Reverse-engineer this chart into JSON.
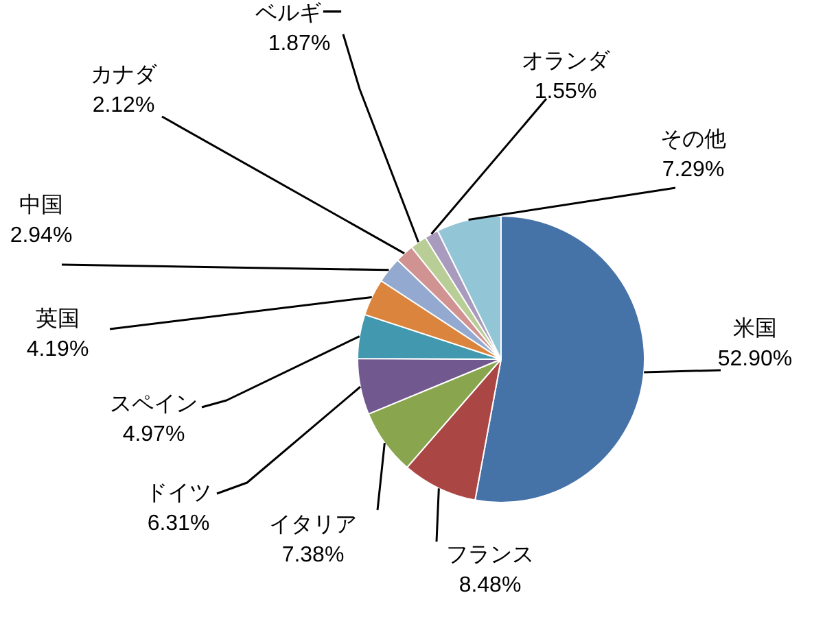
{
  "chart_data": {
    "type": "pie",
    "categories": [
      "米国",
      "フランス",
      "イタリア",
      "ドイツ",
      "スペイン",
      "英国",
      "中国",
      "カナダ",
      "ベルギー",
      "オランダ",
      "その他"
    ],
    "values": [
      52.9,
      8.48,
      7.38,
      6.31,
      4.97,
      4.19,
      2.94,
      2.12,
      1.87,
      1.55,
      7.29
    ],
    "value_labels": [
      "52.90%",
      "8.48%",
      "7.38%",
      "6.31%",
      "4.97%",
      "4.19%",
      "2.94%",
      "2.12%",
      "1.87%",
      "1.55%",
      "7.29%"
    ],
    "colors": [
      "#4572a7",
      "#aa4643",
      "#89a54e",
      "#71588f",
      "#4198af",
      "#db843d",
      "#93a9cf",
      "#d19392",
      "#b9cd96",
      "#a99bbd",
      "#92c5d6"
    ],
    "legend": false
  }
}
